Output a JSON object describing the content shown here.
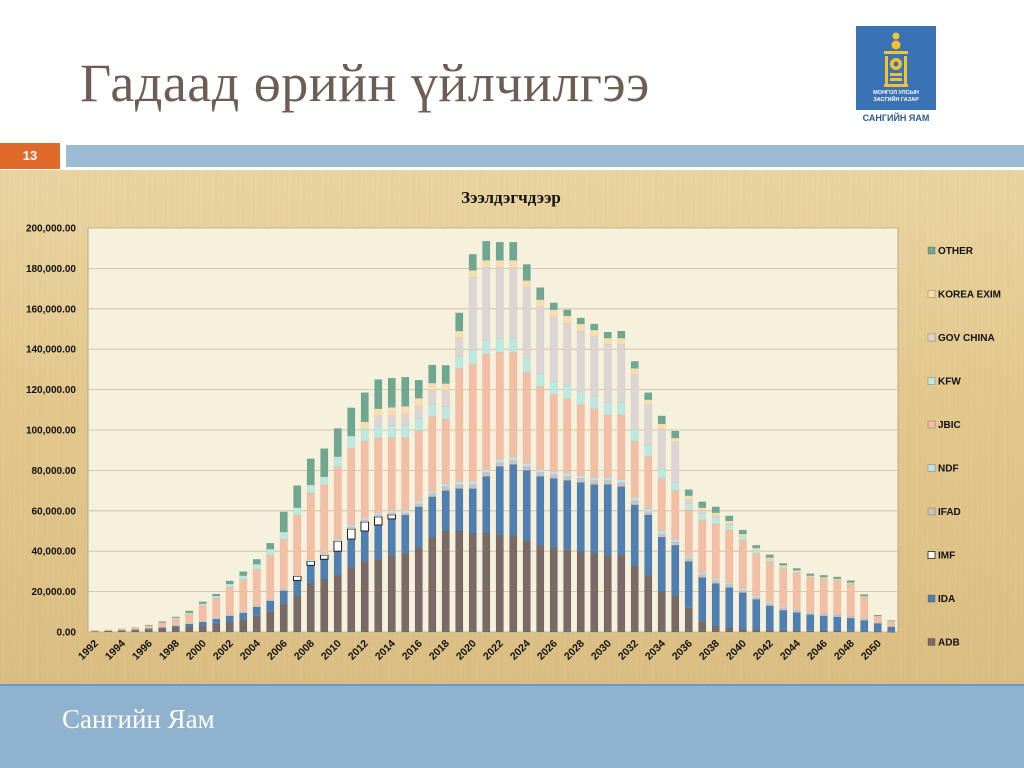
{
  "slide": {
    "title": "Гадаад өрийн үйлчилгээ",
    "number": "13",
    "footer": "Сангийн Яам"
  },
  "logo": {
    "caption": "САНГИЙН ЯАМ",
    "inner_text_1": "МОНГОЛ УЛСЫН",
    "inner_text_2": "ЗАСГИЙН ГАЗАР",
    "icon": "soyombo-emblem-icon"
  },
  "colors": {
    "accent_band": "#9cbcd6",
    "slide_number_bg": "#e06a2a",
    "footer_bg": "#8fb2cf",
    "title_color": "#6e5d52"
  },
  "chart_data": {
    "type": "bar",
    "stacked": true,
    "title": "Зээлдэгчдээр",
    "ylim": [
      0,
      200000
    ],
    "y_ticks": [
      "0.00",
      "20,000.00",
      "40,000.00",
      "60,000.00",
      "80,000.00",
      "100,000.00",
      "120,000.00",
      "140,000.00",
      "160,000.00",
      "180,000.00",
      "200,000.00"
    ],
    "grid": "horizontal",
    "legend_position": "right",
    "x_tick_labels": [
      "1992",
      "1994",
      "1996",
      "1998",
      "2000",
      "2002",
      "2004",
      "2006",
      "2008",
      "2010",
      "2012",
      "2014",
      "2016",
      "2018",
      "2020",
      "2022",
      "2024",
      "2026",
      "2028",
      "2030",
      "2032",
      "2034",
      "2036",
      "2038",
      "2040",
      "2042",
      "2044",
      "2046",
      "2048",
      "2050"
    ],
    "categories": [
      "1992",
      "1993",
      "1994",
      "1995",
      "1996",
      "1997",
      "1998",
      "1999",
      "2000",
      "2001",
      "2002",
      "2003",
      "2004",
      "2005",
      "2006",
      "2007",
      "2008",
      "2009",
      "2010",
      "2011",
      "2012",
      "2013",
      "2014",
      "2015",
      "2016",
      "2017",
      "2018",
      "2019",
      "2020",
      "2021",
      "2022",
      "2023",
      "2024",
      "2025",
      "2026",
      "2027",
      "2028",
      "2029",
      "2030",
      "2031",
      "2032",
      "2033",
      "2034",
      "2035",
      "2036",
      "2037",
      "2038",
      "2039",
      "2040",
      "2041",
      "2042",
      "2043",
      "2044",
      "2045",
      "2046",
      "2047",
      "2048",
      "2049",
      "2050",
      "2051"
    ],
    "series": [
      {
        "name": "ADB",
        "color": "#7a6a66",
        "values": [
          300,
          500,
          800,
          900,
          1200,
          1500,
          2000,
          2500,
          3000,
          4000,
          5000,
          6000,
          8000,
          10000,
          14000,
          18000,
          24000,
          26000,
          28000,
          32000,
          35000,
          36000,
          38000,
          39000,
          42000,
          47000,
          50000,
          50000,
          49000,
          49000,
          48000,
          48000,
          45000,
          43000,
          42000,
          41000,
          40000,
          39000,
          38000,
          38000,
          33000,
          28000,
          20000,
          18000,
          12000,
          5000,
          3000,
          2000,
          1500,
          1200,
          1000,
          800,
          700,
          600,
          500,
          500,
          400,
          300,
          200,
          100
        ]
      },
      {
        "name": "IDA",
        "color": "#4f7fb0",
        "values": [
          0,
          0,
          0,
          300,
          500,
          700,
          1000,
          1500,
          2000,
          2500,
          3000,
          3500,
          4500,
          5500,
          6500,
          7500,
          9000,
          10000,
          12000,
          14000,
          15000,
          17000,
          18000,
          19000,
          20000,
          20000,
          20000,
          21000,
          22000,
          28000,
          34000,
          35000,
          35000,
          34000,
          34000,
          34000,
          34000,
          34000,
          35000,
          34000,
          30000,
          30000,
          27000,
          25000,
          23000,
          22000,
          21000,
          20000,
          18000,
          15000,
          12000,
          10000,
          9000,
          8000,
          7500,
          7000,
          6500,
          5500,
          4000,
          2500
        ]
      },
      {
        "name": "IMF",
        "color": "#ffffff",
        "values": [
          0,
          0,
          0,
          0,
          0,
          0,
          0,
          0,
          0,
          0,
          0,
          0,
          0,
          0,
          0,
          2000,
          2000,
          2000,
          5000,
          5000,
          4500,
          4000,
          2000,
          0,
          0,
          0,
          0,
          0,
          0,
          0,
          0,
          0,
          0,
          0,
          0,
          0,
          0,
          0,
          0,
          0,
          0,
          0,
          0,
          0,
          0,
          0,
          0,
          0,
          0,
          0,
          0,
          0,
          0,
          0,
          0,
          0,
          0,
          0,
          0,
          0
        ]
      },
      {
        "name": "IFAD",
        "color": "#c9c0bf",
        "values": [
          0,
          0,
          0,
          0,
          0,
          0,
          0,
          0,
          0,
          0,
          0,
          0,
          0,
          0,
          0,
          0,
          0,
          0,
          0,
          1000,
          1000,
          1000,
          1000,
          1000,
          1500,
          1500,
          2000,
          2000,
          2000,
          2000,
          2000,
          2000,
          2000,
          2000,
          2000,
          2000,
          2000,
          2000,
          2000,
          2000,
          2000,
          1500,
          1500,
          1500,
          1500,
          1500,
          1500,
          1500,
          1000,
          1000,
          1000,
          1000,
          1000,
          1000,
          1000,
          1000,
          800,
          600,
          400,
          200
        ]
      },
      {
        "name": "NDF",
        "color": "#bfe0ee",
        "values": [
          0,
          0,
          0,
          0,
          0,
          0,
          0,
          0,
          300,
          300,
          300,
          400,
          500,
          500,
          500,
          500,
          800,
          800,
          800,
          1000,
          1000,
          1000,
          1200,
          1200,
          1200,
          1200,
          1500,
          1500,
          1500,
          1500,
          1500,
          1500,
          1500,
          1500,
          1500,
          1500,
          1500,
          1500,
          1500,
          1500,
          1500,
          1500,
          1500,
          1500,
          1000,
          1000,
          1000,
          1000,
          1000,
          800,
          800,
          600,
          500,
          400,
          300,
          200,
          200,
          100,
          100,
          0
        ]
      },
      {
        "name": "JBIC",
        "color": "#f3bfa4",
        "values": [
          600,
          700,
          900,
          1200,
          1500,
          2500,
          3500,
          5000,
          8000,
          10000,
          14000,
          16000,
          18000,
          22000,
          25000,
          30000,
          33000,
          34000,
          36000,
          38000,
          38000,
          37000,
          36000,
          36000,
          35000,
          37000,
          32000,
          56000,
          58000,
          57000,
          53000,
          52000,
          45000,
          41000,
          38000,
          37000,
          35000,
          34000,
          31000,
          32000,
          28000,
          26000,
          26000,
          24000,
          23000,
          26000,
          27000,
          26000,
          24000,
          21000,
          20000,
          19000,
          18000,
          17000,
          17000,
          17000,
          16000,
          11000,
          3000,
          2500
        ]
      },
      {
        "name": "KFW",
        "color": "#bde8df",
        "values": [
          0,
          0,
          0,
          0,
          0,
          0,
          500,
          500,
          700,
          1000,
          1500,
          2000,
          2500,
          3000,
          3500,
          3500,
          4000,
          4000,
          5000,
          6000,
          6000,
          6000,
          6000,
          6000,
          6000,
          6000,
          6000,
          6000,
          7000,
          7000,
          7000,
          7000,
          7000,
          6500,
          6500,
          6500,
          6500,
          6000,
          6000,
          6000,
          6000,
          5500,
          4500,
          4000,
          3000,
          3000,
          3000,
          2500,
          2000,
          1500,
          1000,
          800,
          500,
          300,
          200,
          100,
          100,
          0,
          0,
          0
        ]
      },
      {
        "name": "GOV CHINA",
        "color": "#dcd5d4",
        "values": [
          0,
          0,
          0,
          0,
          0,
          0,
          0,
          0,
          0,
          0,
          0,
          0,
          0,
          0,
          0,
          0,
          0,
          0,
          0,
          0,
          0,
          5000,
          5000,
          5500,
          6000,
          7000,
          8000,
          9000,
          36000,
          36000,
          35000,
          35000,
          35000,
          33000,
          32000,
          31000,
          30000,
          30000,
          29000,
          29000,
          27000,
          20000,
          20000,
          20000,
          2000,
          1500,
          1000,
          500,
          0,
          0,
          0,
          0,
          0,
          0,
          0,
          0,
          0,
          0,
          0,
          0
        ]
      },
      {
        "name": "KOREA EXIM",
        "color": "#f7ddb0",
        "values": [
          0,
          0,
          0,
          0,
          0,
          0,
          0,
          0,
          0,
          0,
          0,
          0,
          0,
          0,
          0,
          0,
          0,
          0,
          0,
          0,
          3500,
          3500,
          4000,
          4000,
          4000,
          3500,
          3500,
          3500,
          3500,
          3500,
          3500,
          3500,
          3500,
          3500,
          3500,
          3500,
          3500,
          3000,
          3000,
          3000,
          3000,
          2500,
          2500,
          2000,
          2000,
          1500,
          1500,
          1500,
          1000,
          1000,
          1000,
          800,
          800,
          600,
          600,
          500,
          500,
          300,
          200,
          100
        ]
      },
      {
        "name": "OTHER",
        "color": "#6ea892",
        "values": [
          0,
          0,
          0,
          0,
          300,
          500,
          500,
          1000,
          1000,
          1000,
          1500,
          2000,
          2500,
          3000,
          10000,
          11000,
          13000,
          14000,
          14000,
          14000,
          14500,
          14500,
          14500,
          14500,
          9000,
          9000,
          9000,
          9000,
          8000,
          9500,
          9000,
          9000,
          8000,
          6000,
          3500,
          3000,
          3000,
          3000,
          3000,
          3500,
          3500,
          3500,
          4000,
          3500,
          3000,
          3000,
          3000,
          2500,
          2000,
          1500,
          1500,
          1000,
          1000,
          1000,
          1000,
          1000,
          1000,
          800,
          500,
          300
        ]
      }
    ]
  }
}
